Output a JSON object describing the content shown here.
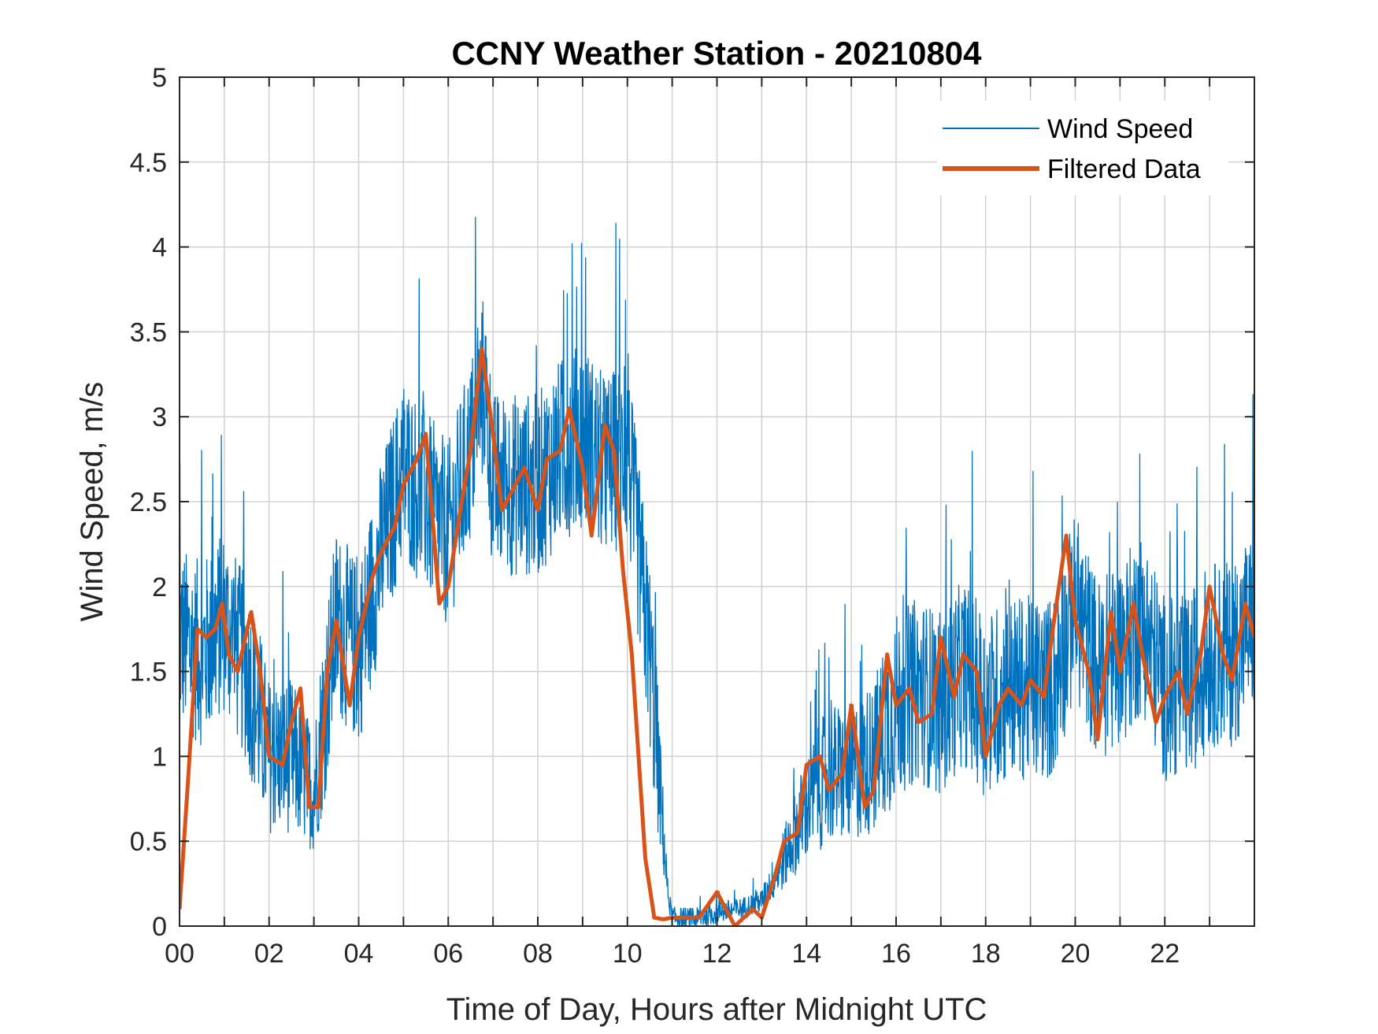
{
  "chart_data": {
    "type": "line",
    "title": "CCNY Weather Station - 20210804",
    "xlabel": "Time of Day, Hours after Midnight UTC",
    "ylabel": "Wind Speed, m/s",
    "xlim": [
      0,
      24
    ],
    "ylim": [
      0,
      5
    ],
    "grid": true,
    "legend_position": "top-right",
    "x_ticks": [
      0,
      2,
      4,
      6,
      8,
      10,
      12,
      14,
      16,
      18,
      20,
      22
    ],
    "x_tick_labels": [
      "00",
      "02",
      "04",
      "06",
      "08",
      "10",
      "12",
      "14",
      "16",
      "18",
      "20",
      "22"
    ],
    "x_minor_grid": [
      1,
      3,
      5,
      7,
      9,
      11,
      13,
      15,
      17,
      19,
      21,
      23
    ],
    "y_ticks": [
      0,
      0.5,
      1,
      1.5,
      2,
      2.5,
      3,
      3.5,
      4,
      4.5,
      5
    ],
    "y_tick_labels": [
      "0",
      "0.5",
      "1",
      "1.5",
      "2",
      "2.5",
      "3",
      "3.5",
      "4",
      "4.5",
      "5"
    ],
    "series": [
      {
        "name": "Wind Speed",
        "color": "#0072BD",
        "style": "thin-noisy",
        "envelope_x": [
          0,
          0.5,
          1,
          1.5,
          2,
          2.5,
          3,
          3.5,
          4,
          4.5,
          5,
          5.5,
          6,
          6.5,
          6.8,
          7,
          7.5,
          8,
          8.5,
          9,
          9.5,
          10,
          10.5,
          10.9,
          11,
          11.5,
          12,
          12.5,
          13,
          13.5,
          14,
          14.5,
          15,
          15.5,
          16,
          16.5,
          17,
          17.5,
          18,
          18.5,
          19,
          19.5,
          20,
          20.5,
          21,
          21.5,
          22,
          22.5,
          23,
          23.5,
          24
        ],
        "envelope_y": [
          1.7,
          1.6,
          1.8,
          1.5,
          1.0,
          1.0,
          0.8,
          1.8,
          1.6,
          2.2,
          2.7,
          2.5,
          2.3,
          2.8,
          3.2,
          2.6,
          2.6,
          2.6,
          2.8,
          2.9,
          2.7,
          2.8,
          1.6,
          0.2,
          0.05,
          0.04,
          0.08,
          0.1,
          0.15,
          0.4,
          0.7,
          0.9,
          0.9,
          1.0,
          1.3,
          1.4,
          1.3,
          1.5,
          1.3,
          1.4,
          1.4,
          1.4,
          1.9,
          1.5,
          1.6,
          1.8,
          1.4,
          1.4,
          1.6,
          1.6,
          1.8
        ],
        "noise_amplitude": 0.55
      },
      {
        "name": "Filtered Data",
        "color": "#D95319",
        "style": "thick",
        "x": [
          0,
          0.2,
          0.4,
          0.6,
          0.8,
          0.95,
          1.1,
          1.3,
          1.6,
          1.8,
          2.0,
          2.3,
          2.5,
          2.7,
          2.9,
          3.1,
          3.3,
          3.5,
          3.8,
          4.0,
          4.3,
          4.5,
          4.8,
          5.0,
          5.3,
          5.5,
          5.8,
          6.0,
          6.3,
          6.5,
          6.75,
          7.0,
          7.2,
          7.5,
          7.7,
          8.0,
          8.2,
          8.5,
          8.7,
          9.0,
          9.2,
          9.5,
          9.7,
          9.9,
          10.1,
          10.4,
          10.6,
          10.8,
          11.0,
          11.3,
          11.6,
          12.0,
          12.2,
          12.4,
          12.6,
          12.8,
          13.0,
          13.3,
          13.5,
          13.8,
          14.0,
          14.3,
          14.5,
          14.8,
          15.0,
          15.3,
          15.5,
          15.8,
          16.0,
          16.3,
          16.5,
          16.8,
          17.0,
          17.3,
          17.5,
          17.8,
          18.0,
          18.3,
          18.5,
          18.8,
          19.0,
          19.3,
          19.5,
          19.8,
          20.0,
          20.3,
          20.5,
          20.8,
          21.0,
          21.3,
          21.5,
          21.8,
          22.0,
          22.3,
          22.5,
          22.8,
          23.0,
          23.3,
          23.5,
          23.8,
          24.0
        ],
        "values": [
          0.1,
          0.9,
          1.75,
          1.7,
          1.75,
          1.9,
          1.6,
          1.5,
          1.85,
          1.5,
          1.0,
          0.95,
          1.2,
          1.4,
          0.7,
          0.7,
          1.5,
          1.8,
          1.3,
          1.7,
          2.05,
          2.2,
          2.35,
          2.6,
          2.75,
          2.9,
          1.9,
          2.0,
          2.5,
          2.8,
          3.4,
          2.9,
          2.45,
          2.6,
          2.7,
          2.45,
          2.75,
          2.8,
          3.05,
          2.7,
          2.3,
          2.95,
          2.8,
          2.1,
          1.6,
          0.4,
          0.05,
          0.04,
          0.05,
          0.05,
          0.05,
          0.2,
          0.1,
          0.0,
          0.05,
          0.1,
          0.05,
          0.3,
          0.5,
          0.55,
          0.95,
          1.0,
          0.8,
          0.9,
          1.3,
          0.7,
          0.8,
          1.6,
          1.3,
          1.4,
          1.2,
          1.25,
          1.7,
          1.35,
          1.6,
          1.5,
          1.0,
          1.3,
          1.4,
          1.3,
          1.45,
          1.35,
          1.75,
          2.3,
          1.8,
          1.5,
          1.1,
          1.85,
          1.5,
          1.9,
          1.6,
          1.2,
          1.35,
          1.5,
          1.25,
          1.6,
          2.0,
          1.6,
          1.45,
          1.9,
          1.7
        ]
      }
    ]
  }
}
